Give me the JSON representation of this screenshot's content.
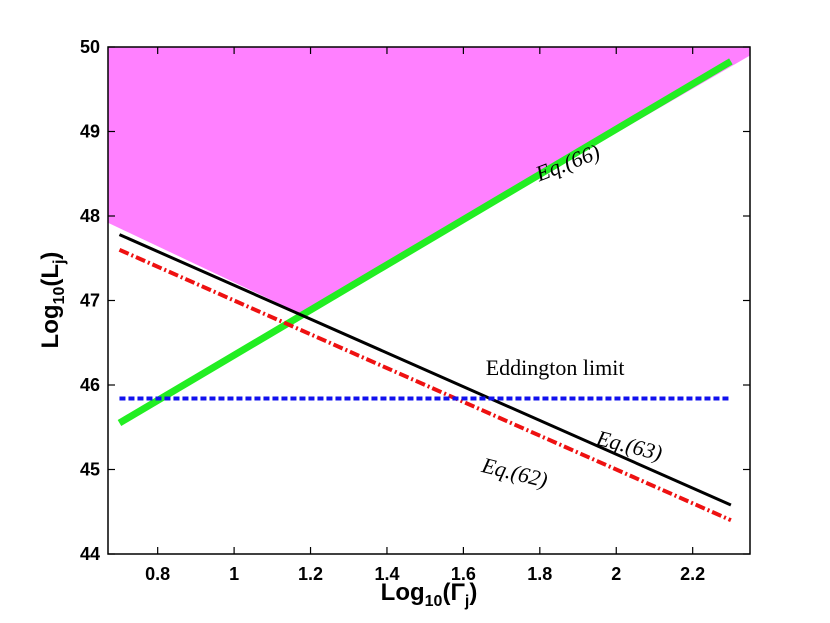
{
  "chart_data": {
    "type": "line",
    "xlabel": {
      "base": "Log",
      "sub": "10",
      "open": "(Γ",
      "var_sub": "j",
      "close": ")"
    },
    "ylabel": {
      "base": "Log",
      "sub": "10",
      "open": "(L",
      "var_sub": "j",
      "close": ")"
    },
    "xlim": [
      0.67,
      2.35
    ],
    "ylim": [
      44,
      50
    ],
    "xticks": [
      "0.8",
      "1",
      "1.2",
      "1.4",
      "1.6",
      "1.8",
      "2",
      "2.2"
    ],
    "yticks": [
      "44",
      "45",
      "46",
      "47",
      "48",
      "49",
      "50"
    ],
    "grid": false,
    "legend": "none",
    "shaded_region": {
      "color": "#ff80ff",
      "polygon": [
        [
          0.67,
          47.92
        ],
        [
          0.67,
          50
        ],
        [
          2.35,
          50
        ],
        [
          2.35,
          49.9
        ],
        [
          1.18,
          46.83
        ],
        [
          0.67,
          47.92
        ]
      ]
    },
    "series": [
      {
        "id": "eq66",
        "color": "#22ee22",
        "style": "solid",
        "width": 7,
        "points": [
          [
            0.7,
            45.55
          ],
          [
            2.3,
            49.83
          ]
        ]
      },
      {
        "id": "eq63",
        "color": "#000000",
        "style": "solid",
        "width": 3,
        "points": [
          [
            0.7,
            47.78
          ],
          [
            2.3,
            44.58
          ]
        ]
      },
      {
        "id": "eq62",
        "color": "#ee1111",
        "style": "dashdot",
        "width": 4,
        "points": [
          [
            0.7,
            47.6
          ],
          [
            2.3,
            44.4
          ]
        ]
      },
      {
        "id": "eddington",
        "color": "#1111ee",
        "style": "dotted",
        "width": 4,
        "points": [
          [
            0.7,
            45.84
          ],
          [
            2.3,
            45.84
          ]
        ]
      }
    ],
    "annotations": [
      {
        "id": "eq66",
        "text": "Eq.(66)",
        "x": 1.88,
        "y": 48.55,
        "rotate": -21
      },
      {
        "id": "eddington",
        "text": "Eddington limit",
        "x": 1.84,
        "y": 46.12,
        "rotate": 0
      },
      {
        "id": "eq63",
        "text": "Eq.(63)",
        "x": 2.03,
        "y": 45.2,
        "rotate": 14
      },
      {
        "id": "eq62",
        "text": "Eq.(62)",
        "x": 1.73,
        "y": 44.88,
        "rotate": 14
      }
    ]
  }
}
